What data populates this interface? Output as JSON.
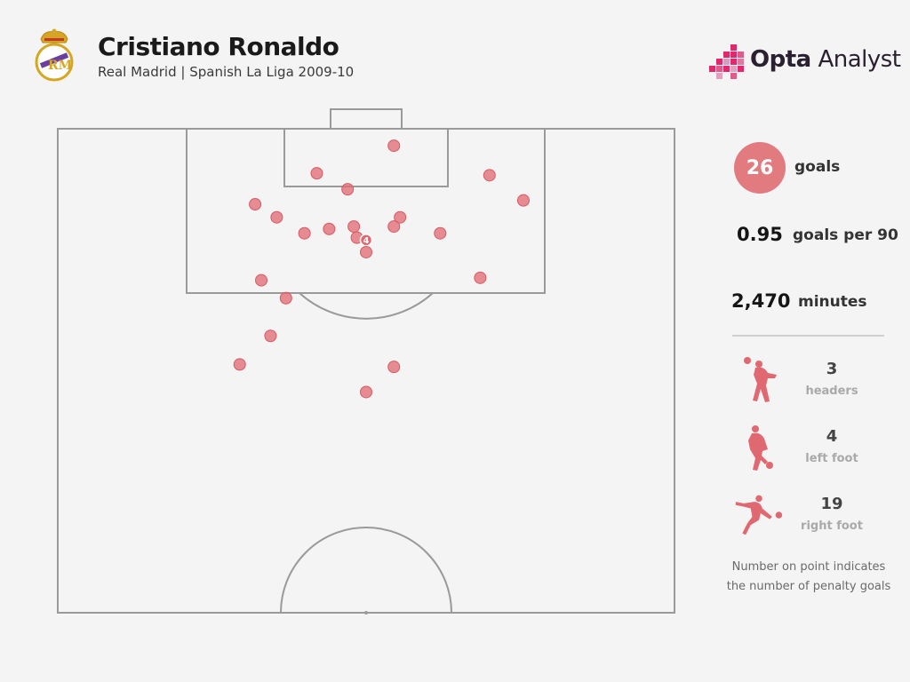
{
  "header": {
    "player_name": "Cristiano Ronaldo",
    "subtitle": "Real Madrid | Spanish La Liga 2009-10"
  },
  "brand": {
    "word1": "Opta",
    "word2": "Analyst"
  },
  "stats": {
    "goals_value": "26",
    "goals_label": "goals",
    "gp90_value": "0.95",
    "gp90_label": "goals per 90",
    "minutes_value": "2,470",
    "minutes_label": "minutes"
  },
  "breakdown": [
    {
      "icon": "header-player-icon",
      "count": "3",
      "label": "headers"
    },
    {
      "icon": "left-foot-player-icon",
      "count": "4",
      "label": "left foot"
    },
    {
      "icon": "right-foot-player-icon",
      "count": "19",
      "label": "right foot"
    }
  ],
  "note": {
    "line1": "Number on point indicates",
    "line2": "the number of penalty goals"
  },
  "colors": {
    "shot": "#e06870",
    "pitch_line": "#9a9a9a",
    "background": "#f4f4f4"
  },
  "chart_data": {
    "type": "scatter",
    "title": "Cristiano Ronaldo",
    "subtitle": "Real Madrid | Spanish La Liga 2009-10",
    "x_axis": "pitch width (0-100, left touchline to right touchline)",
    "y_axis": "distance from goal line (0-100 = halfway line)",
    "xlim": [
      0,
      100
    ],
    "ylim": [
      0,
      100
    ],
    "points": [
      {
        "x": 54.5,
        "y": 3.5
      },
      {
        "x": 42.0,
        "y": 9.2
      },
      {
        "x": 70.0,
        "y": 9.6
      },
      {
        "x": 47.0,
        "y": 12.5
      },
      {
        "x": 75.5,
        "y": 14.8
      },
      {
        "x": 32.0,
        "y": 15.6
      },
      {
        "x": 35.5,
        "y": 18.3
      },
      {
        "x": 55.5,
        "y": 18.3
      },
      {
        "x": 48.0,
        "y": 20.2
      },
      {
        "x": 54.5,
        "y": 20.2
      },
      {
        "x": 44.0,
        "y": 20.7
      },
      {
        "x": 40.0,
        "y": 21.6
      },
      {
        "x": 62.0,
        "y": 21.6
      },
      {
        "x": 48.5,
        "y": 22.5
      },
      {
        "x": 50.0,
        "y": 23.0,
        "penalties": "4"
      },
      {
        "x": 50.0,
        "y": 25.5
      },
      {
        "x": 68.5,
        "y": 30.8
      },
      {
        "x": 33.0,
        "y": 31.3
      },
      {
        "x": 37.0,
        "y": 35.0
      },
      {
        "x": 34.5,
        "y": 42.8
      },
      {
        "x": 29.5,
        "y": 48.7
      },
      {
        "x": 54.5,
        "y": 49.2
      },
      {
        "x": 50.0,
        "y": 54.4
      }
    ]
  }
}
